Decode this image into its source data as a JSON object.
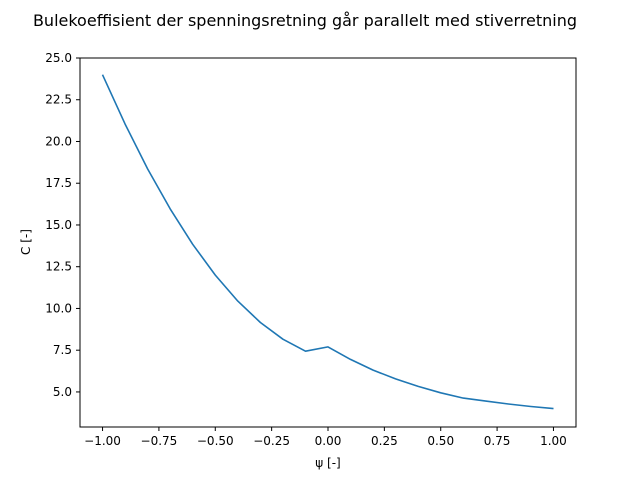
{
  "chart_data": {
    "type": "line",
    "title": "Bulekoeffisient der spenningsretning går parallelt med stiverretning",
    "xlabel": "ψ [-]",
    "ylabel": "C [-]",
    "xlim": [
      -1.1,
      1.1
    ],
    "ylim": [
      2.9,
      25.0
    ],
    "xticks": [
      -1.0,
      -0.75,
      -0.5,
      -0.25,
      0.0,
      0.25,
      0.5,
      0.75,
      1.0
    ],
    "xtick_labels": [
      "−1.00",
      "−0.75",
      "−0.50",
      "−0.25",
      "0.00",
      "0.25",
      "0.50",
      "0.75",
      "1.00"
    ],
    "yticks": [
      5.0,
      7.5,
      10.0,
      12.5,
      15.0,
      17.5,
      20.0,
      22.5,
      25.0
    ],
    "ytick_labels": [
      "5.0",
      "7.5",
      "10.0",
      "12.5",
      "15.0",
      "17.5",
      "20.0",
      "22.5",
      "25.0"
    ],
    "grid": false,
    "series": [
      {
        "color": "#1f77b4",
        "x": [
          -1.0,
          -0.9,
          -0.8,
          -0.7,
          -0.6,
          -0.5,
          -0.4,
          -0.3,
          -0.2,
          -0.1,
          0.0,
          0.1,
          0.2,
          0.3,
          0.4,
          0.5,
          0.6,
          0.7,
          0.8,
          0.9,
          1.0
        ],
        "y": [
          24.0,
          21.04,
          18.36,
          15.96,
          13.84,
          12.0,
          10.44,
          9.16,
          8.16,
          7.44,
          7.7,
          6.95,
          6.31,
          5.78,
          5.33,
          4.95,
          4.63,
          4.45,
          4.28,
          4.13,
          4.0
        ]
      }
    ]
  }
}
